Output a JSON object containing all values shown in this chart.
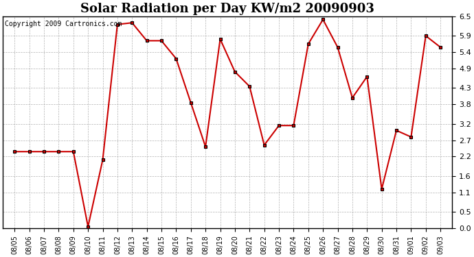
{
  "title": "Solar Radiation per Day KW/m2 20090903",
  "copyright_text": "Copyright 2009 Cartronics.com",
  "dates": [
    "08/05",
    "08/06",
    "08/07",
    "08/08",
    "08/09",
    "08/10",
    "08/11",
    "08/12",
    "08/13",
    "08/14",
    "08/15",
    "08/16",
    "08/17",
    "08/18",
    "08/19",
    "08/20",
    "08/21",
    "08/22",
    "08/23",
    "08/24",
    "08/25",
    "08/26",
    "08/27",
    "08/28",
    "08/29",
    "08/30",
    "08/31",
    "09/01",
    "09/02",
    "09/03"
  ],
  "values": [
    2.35,
    2.35,
    2.35,
    2.35,
    2.35,
    0.05,
    2.1,
    6.25,
    6.3,
    5.75,
    5.75,
    5.2,
    3.85,
    2.5,
    5.8,
    4.8,
    4.35,
    2.55,
    3.15,
    3.15,
    5.65,
    6.4,
    5.55,
    4.0,
    4.65,
    1.2,
    3.0,
    2.8,
    5.9,
    5.55
  ],
  "ylim_min": 0.0,
  "ylim_max": 6.5,
  "yticks": [
    0.0,
    0.5,
    1.1,
    1.6,
    2.2,
    2.7,
    3.2,
    3.8,
    4.3,
    4.9,
    5.4,
    5.9,
    6.5
  ],
  "line_color": "#cc0000",
  "marker": "s",
  "marker_facecolor": "#cc0000",
  "marker_edgecolor": "#000000",
  "marker_size": 3,
  "bg_color": "#ffffff",
  "plot_bg_color": "#ffffff",
  "grid_color": "#aaaaaa",
  "title_fontsize": 13,
  "copyright_fontsize": 7,
  "tick_fontsize": 8,
  "xlabel_fontsize": 7
}
